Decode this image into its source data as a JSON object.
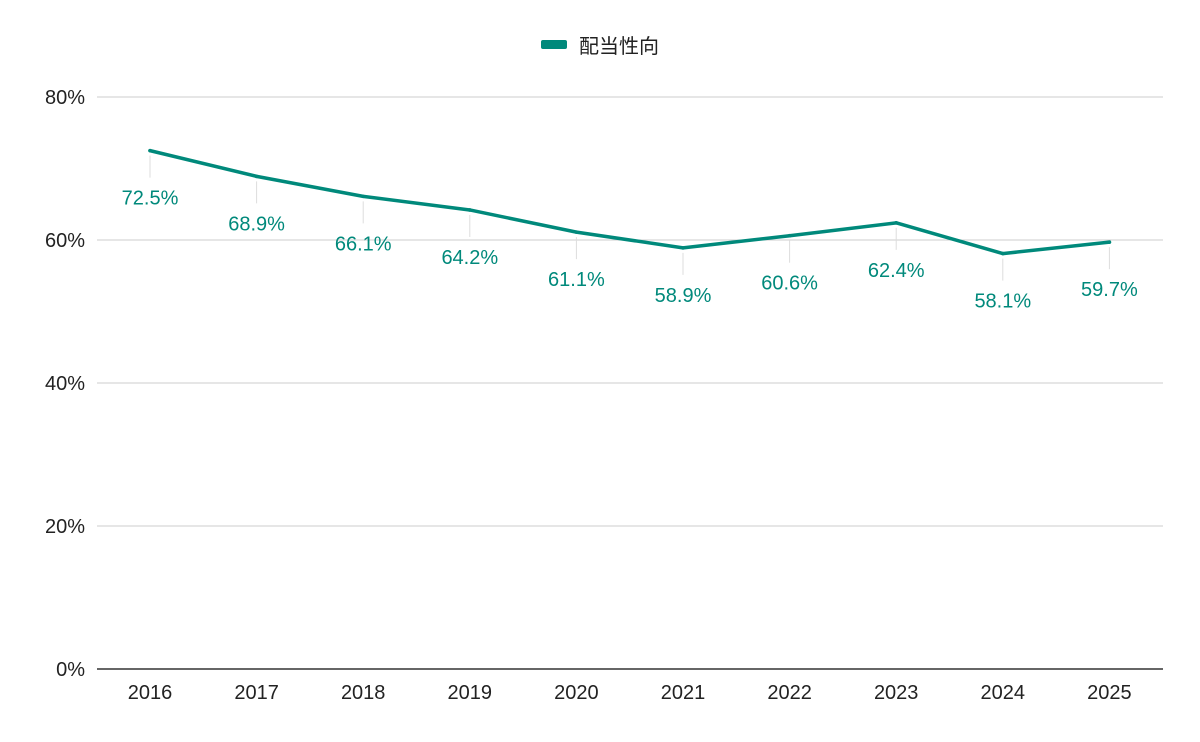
{
  "chart_data": {
    "type": "line",
    "categories": [
      "2016",
      "2017",
      "2018",
      "2019",
      "2020",
      "2021",
      "2022",
      "2023",
      "2024",
      "2025"
    ],
    "series": [
      {
        "name": "配当性向",
        "values": [
          72.5,
          68.9,
          66.1,
          64.2,
          61.1,
          58.9,
          60.6,
          62.4,
          58.1,
          59.7
        ],
        "labels": [
          "72.5%",
          "68.9%",
          "66.1%",
          "64.2%",
          "61.1%",
          "58.9%",
          "60.6%",
          "62.4%",
          "58.1%",
          "59.7%"
        ],
        "color": "#00897b"
      }
    ],
    "y_ticks": [
      0,
      20,
      40,
      60,
      80
    ],
    "y_tick_labels": [
      "0%",
      "20%",
      "40%",
      "60%",
      "80%"
    ],
    "ylim": [
      0,
      80
    ],
    "grid": true,
    "legend_position": "top-center",
    "colors": {
      "line": "#00897b",
      "grid": "#cccccc",
      "axis": "#333333",
      "text": "#222222"
    }
  }
}
